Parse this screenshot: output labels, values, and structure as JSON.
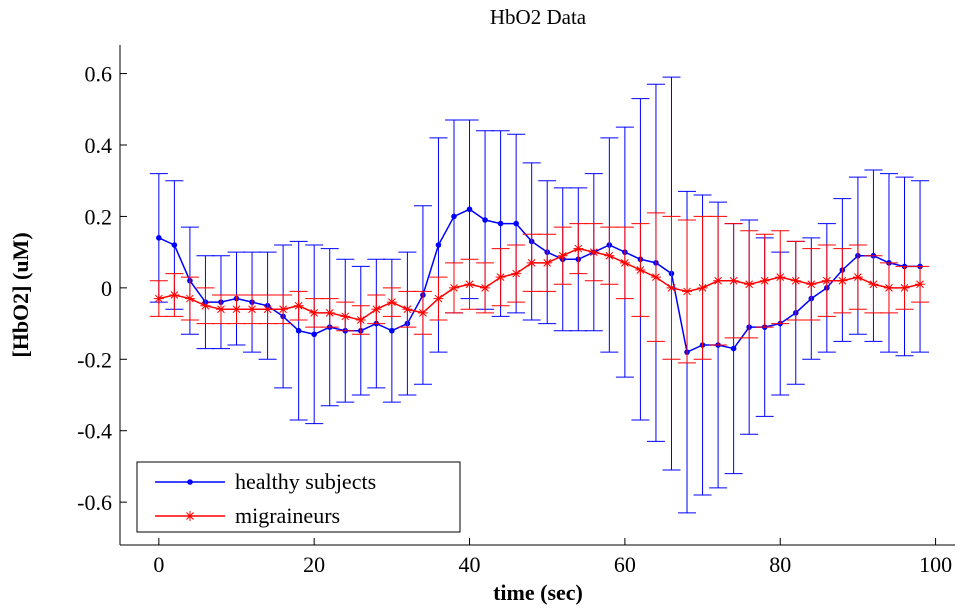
{
  "chart_data": {
    "type": "errorbar",
    "title": "HbO2 Data",
    "x_label": "time (sec)",
    "y_label": "[HbO2] (uM)",
    "x": [
      0,
      2,
      4,
      6,
      8,
      10,
      12,
      14,
      16,
      18,
      20,
      22,
      24,
      26,
      28,
      30,
      32,
      34,
      36,
      38,
      40,
      42,
      44,
      46,
      48,
      50,
      52,
      54,
      56,
      58,
      60,
      62,
      64,
      66,
      68,
      70,
      72,
      74,
      76,
      78,
      80,
      82,
      84,
      86,
      88,
      90,
      92,
      94,
      96,
      98
    ],
    "xlim": [
      -5,
      102.5
    ],
    "xticks": [
      0,
      20,
      40,
      60,
      80,
      100
    ],
    "ylim": [
      -0.72,
      0.68
    ],
    "yticks": [
      -0.6,
      -0.4,
      -0.2,
      0,
      0.2,
      0.4,
      0.6
    ],
    "legend": "lower left",
    "series": [
      {
        "name": "healthy subjects",
        "color": "#0000ff",
        "marker": "dot",
        "values": [
          0.14,
          0.12,
          0.02,
          -0.04,
          -0.04,
          -0.03,
          -0.04,
          -0.05,
          -0.08,
          -0.12,
          -0.13,
          -0.11,
          -0.12,
          -0.12,
          -0.1,
          -0.12,
          -0.1,
          -0.02,
          0.12,
          0.2,
          0.22,
          0.19,
          0.18,
          0.18,
          0.13,
          0.1,
          0.08,
          0.08,
          0.1,
          0.12,
          0.1,
          0.08,
          0.07,
          0.04,
          -0.18,
          -0.16,
          -0.16,
          -0.17,
          -0.11,
          -0.11,
          -0.1,
          -0.07,
          -0.03,
          0.0,
          0.05,
          0.09,
          0.09,
          0.07,
          0.06,
          0.06
        ],
        "errors": [
          0.18,
          0.18,
          0.15,
          0.13,
          0.13,
          0.13,
          0.14,
          0.15,
          0.2,
          0.25,
          0.25,
          0.22,
          0.2,
          0.18,
          0.18,
          0.2,
          0.2,
          0.25,
          0.3,
          0.27,
          0.25,
          0.25,
          0.26,
          0.25,
          0.22,
          0.2,
          0.2,
          0.2,
          0.22,
          0.3,
          0.35,
          0.45,
          0.5,
          0.55,
          0.45,
          0.42,
          0.4,
          0.35,
          0.3,
          0.25,
          0.2,
          0.2,
          0.17,
          0.18,
          0.2,
          0.22,
          0.24,
          0.25,
          0.25,
          0.24
        ]
      },
      {
        "name": "migraineurs",
        "color": "#ff0000",
        "marker": "star",
        "values": [
          -0.03,
          -0.02,
          -0.03,
          -0.05,
          -0.06,
          -0.06,
          -0.06,
          -0.06,
          -0.06,
          -0.05,
          -0.07,
          -0.07,
          -0.08,
          -0.09,
          -0.06,
          -0.04,
          -0.06,
          -0.07,
          -0.03,
          0.0,
          0.01,
          0.0,
          0.03,
          0.04,
          0.07,
          0.07,
          0.09,
          0.11,
          0.1,
          0.09,
          0.07,
          0.05,
          0.03,
          0.0,
          -0.01,
          0.0,
          0.02,
          0.02,
          0.01,
          0.02,
          0.03,
          0.02,
          0.01,
          0.02,
          0.02,
          0.03,
          0.01,
          0.0,
          0.0,
          0.01
        ],
        "errors": [
          0.05,
          0.06,
          0.06,
          0.05,
          0.04,
          0.04,
          0.04,
          0.04,
          0.04,
          0.04,
          0.04,
          0.04,
          0.04,
          0.04,
          0.04,
          0.04,
          0.05,
          0.06,
          0.06,
          0.07,
          0.07,
          0.07,
          0.08,
          0.08,
          0.08,
          0.08,
          0.08,
          0.07,
          0.08,
          0.08,
          0.1,
          0.13,
          0.18,
          0.2,
          0.2,
          0.2,
          0.18,
          0.16,
          0.15,
          0.13,
          0.13,
          0.11,
          0.1,
          0.1,
          0.09,
          0.09,
          0.08,
          0.07,
          0.06,
          0.05
        ]
      }
    ]
  }
}
